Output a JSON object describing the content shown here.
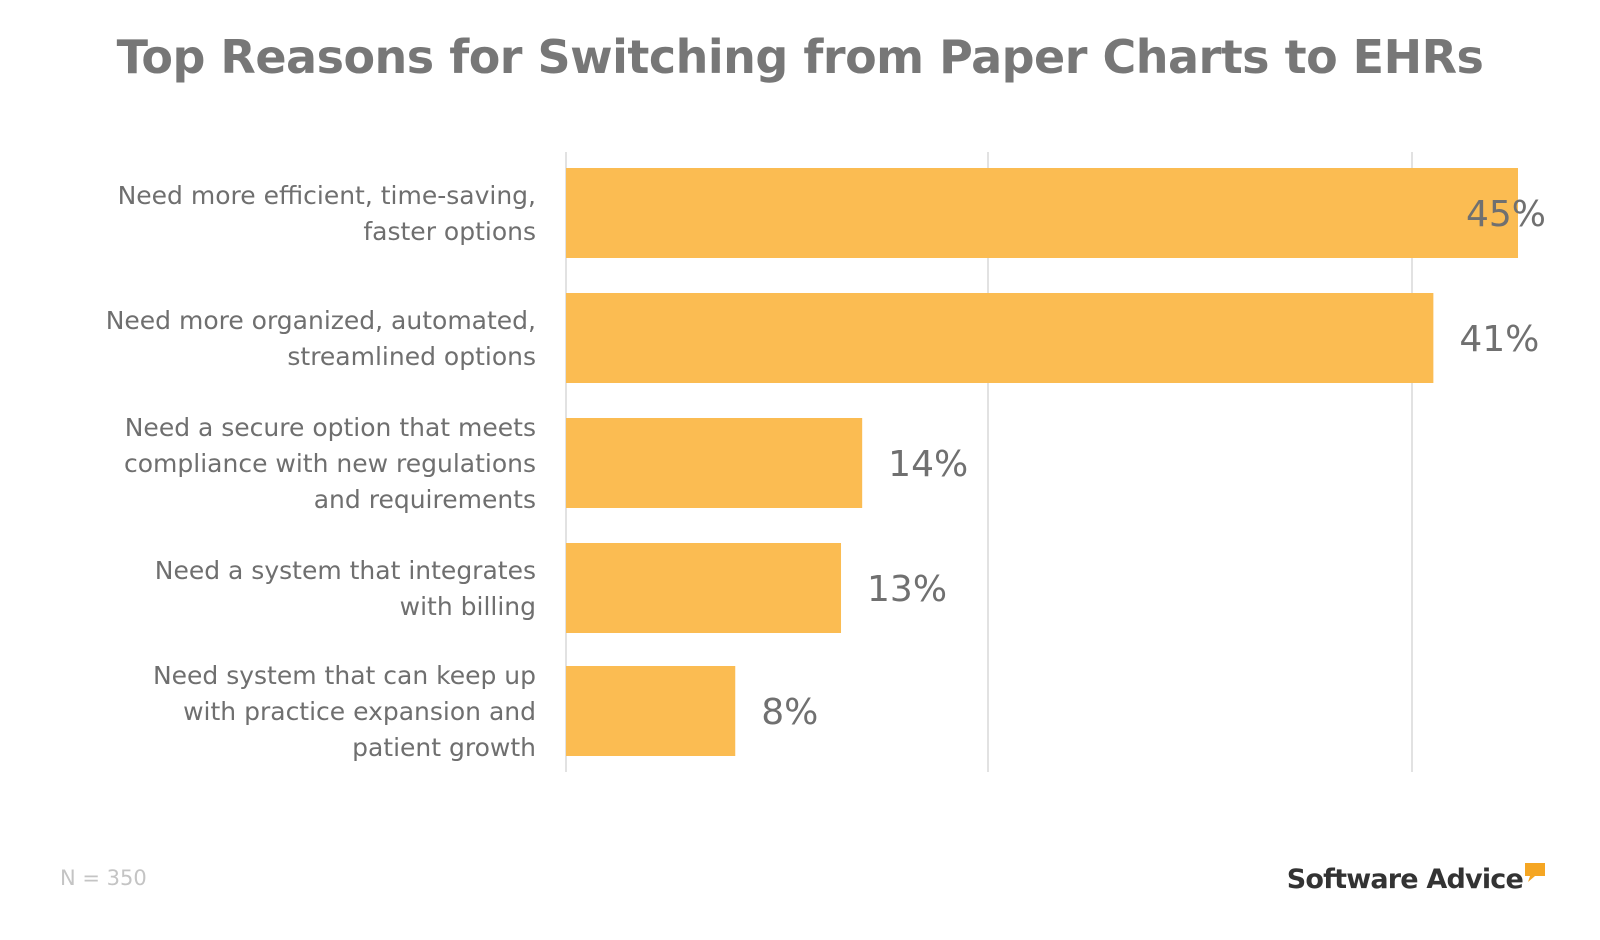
{
  "chart_data": {
    "type": "bar",
    "orientation": "horizontal",
    "title": "Top Reasons for Switching from Paper Charts to EHRs",
    "categories": [
      [
        "Need more efficient, time-saving,",
        "faster options"
      ],
      [
        "Need more organized, automated,",
        "streamlined options"
      ],
      [
        "Need a secure option that meets",
        "compliance with new regulations",
        "and requirements"
      ],
      [
        "Need a system that integrates",
        "with billing"
      ],
      [
        "Need system that can keep up",
        "with practice expansion and",
        "patient growth"
      ]
    ],
    "values": [
      45,
      41,
      14,
      13,
      8
    ],
    "value_labels": [
      "45%",
      "41%",
      "14%",
      "13%",
      "8%"
    ],
    "unit": "%",
    "xlim": [
      0,
      45
    ],
    "grid": true,
    "legend": "none",
    "bar_color": "#FBBC52",
    "grid_color": "#e2e2e2"
  },
  "footer": {
    "sample_note": "N = 350",
    "brand": "Software Advice",
    "brand_accent": "#F5A623"
  }
}
